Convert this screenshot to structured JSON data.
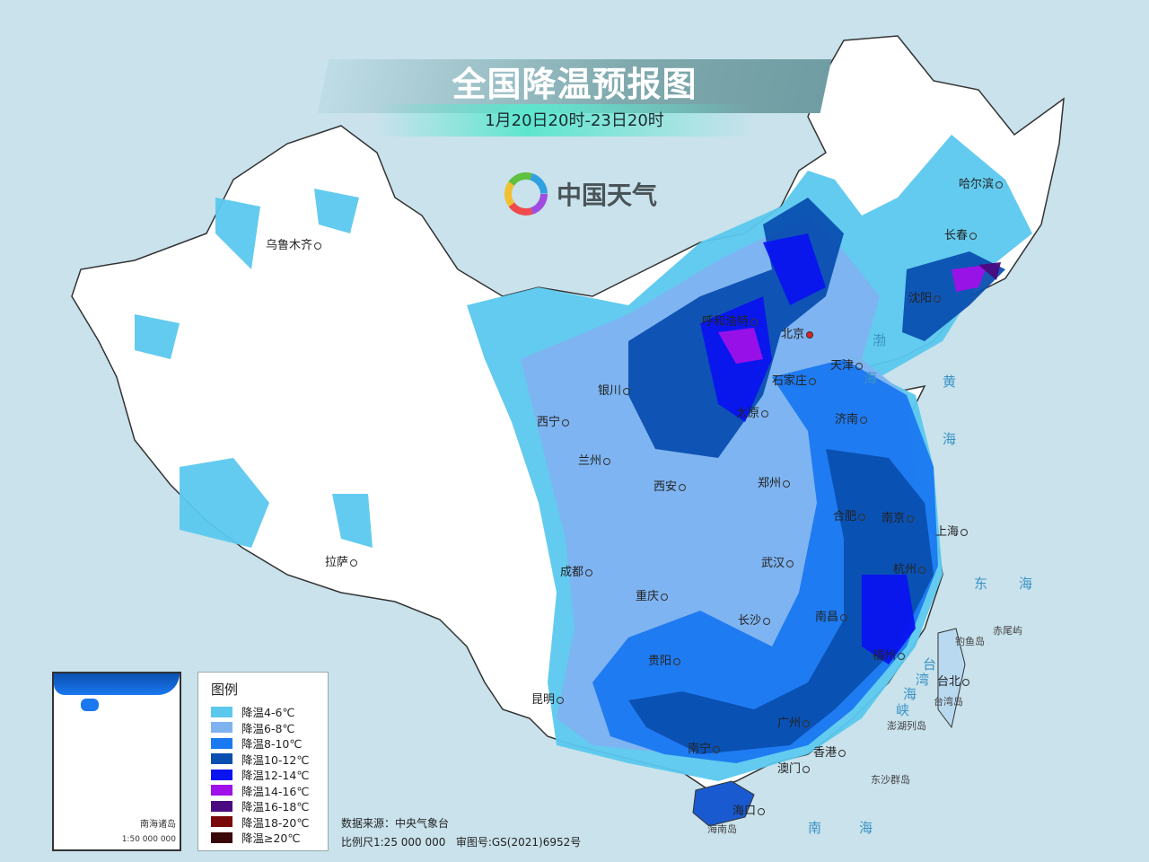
{
  "header": {
    "title": "全国降温预报图",
    "subtitle": "1月20日20时-23日20时",
    "logo_text": "中国天气"
  },
  "cities": [
    "哈尔滨",
    "长春",
    "沈阳",
    "呼和浩特",
    "北京",
    "天津",
    "石家庄",
    "银川",
    "太原",
    "济南",
    "西宁",
    "兰州",
    "西安",
    "郑州",
    "合肥",
    "南京",
    "上海",
    "杭州",
    "武汉",
    "成都",
    "重庆",
    "长沙",
    "南昌",
    "福州",
    "台北",
    "贵阳",
    "昆明",
    "广州",
    "南宁",
    "香港",
    "澳门",
    "海口",
    "乌鲁木齐",
    "拉萨"
  ],
  "islands": [
    "钓鱼岛",
    "赤尾屿",
    "台湾岛",
    "澎湖列岛",
    "东沙群岛",
    "海南岛"
  ],
  "seas": [
    "渤",
    "海",
    "黄",
    "海",
    "东",
    "海",
    "台",
    "湾",
    "海",
    "峡",
    "南",
    "海"
  ],
  "legend": {
    "title": "图例",
    "items": [
      {
        "label": "降温4-6℃",
        "color": "#5bc8ee"
      },
      {
        "label": "降温6-8℃",
        "color": "#7fb2f0"
      },
      {
        "label": "降温8-10℃",
        "color": "#1a78f0"
      },
      {
        "label": "降温10-12℃",
        "color": "#0a4fb0"
      },
      {
        "label": "降温12-14℃",
        "color": "#0a14f0"
      },
      {
        "label": "降温14-16℃",
        "color": "#a010e8"
      },
      {
        "label": "降温16-18℃",
        "color": "#4a0a80"
      },
      {
        "label": "降温18-20℃",
        "color": "#7a0a0a"
      },
      {
        "label": "降温≥20℃",
        "color": "#3a0808"
      }
    ]
  },
  "inset": {
    "name": "南海诸岛",
    "scale": "1:50 000 000"
  },
  "footer": {
    "source": "数据来源：中央气象台",
    "scale": "比例尺1:25 000 000   审图号:GS(2021)6952号"
  }
}
